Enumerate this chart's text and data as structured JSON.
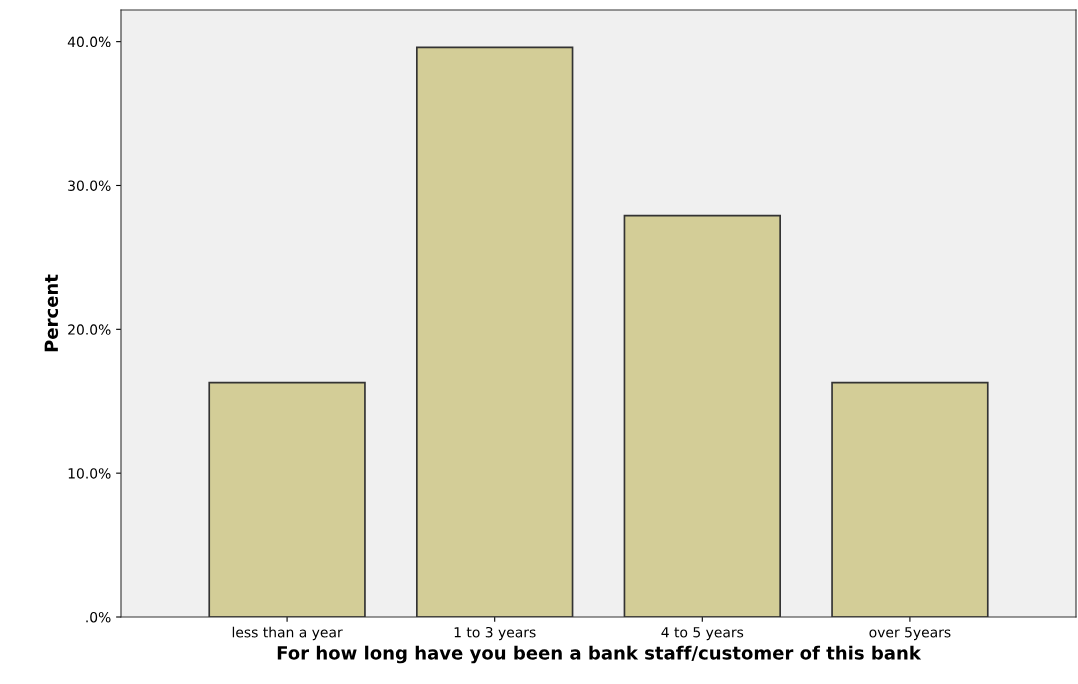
{
  "chart_data": {
    "type": "bar",
    "xlabel": "For how long have you been a bank staff/customer of this bank",
    "ylabel": "Percent",
    "categories": [
      "less than a year",
      "1 to 3 years",
      "4 to 5 years",
      "over 5years"
    ],
    "values": [
      16.3,
      39.6,
      27.9,
      16.3
    ],
    "color": "#d3cd97",
    "ylim": [
      0,
      42.2
    ],
    "yticks": [
      {
        "value": 0,
        "label": ".0%"
      },
      {
        "value": 10,
        "label": "10.0%"
      },
      {
        "value": 20,
        "label": "20.0%"
      },
      {
        "value": 30,
        "label": "30.0%"
      },
      {
        "value": 40,
        "label": "40.0%"
      }
    ],
    "grid": false
  }
}
